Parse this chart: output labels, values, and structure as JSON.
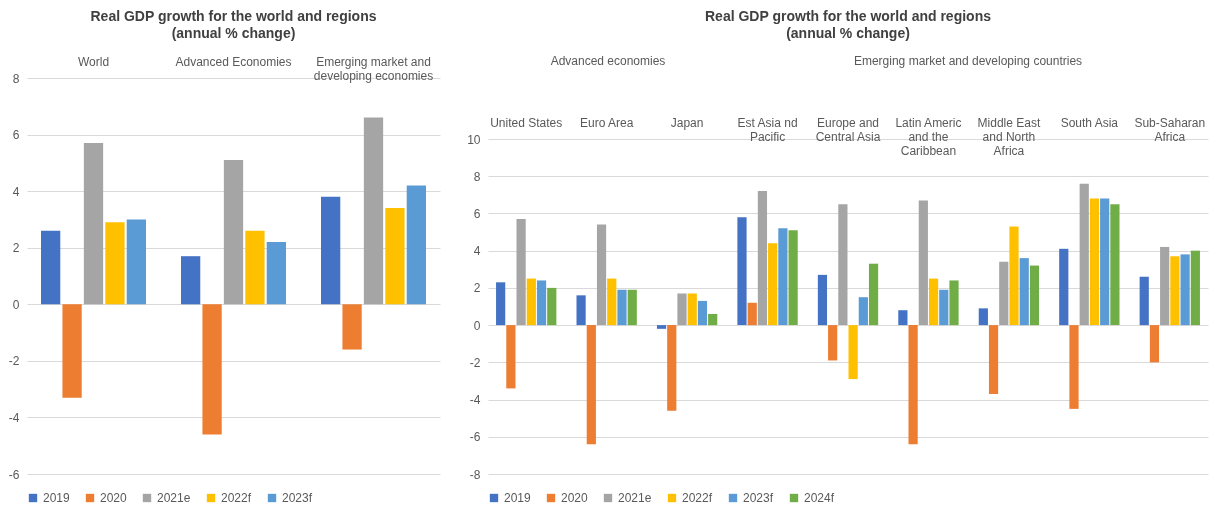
{
  "chart_data": [
    {
      "type": "bar",
      "title": "Real GDP growth for the world and regions",
      "subtitle": "(annual % change)",
      "categories": [
        "World",
        "Advanced Economies",
        "Emerging market and developing economies"
      ],
      "series": [
        {
          "name": "2019",
          "color": "#4472c4",
          "values": [
            2.6,
            1.7,
            3.8
          ]
        },
        {
          "name": "2020",
          "color": "#ed7d31",
          "values": [
            -3.3,
            -4.6,
            -1.6
          ]
        },
        {
          "name": "2021e",
          "color": "#a5a5a5",
          "values": [
            5.7,
            5.1,
            6.6
          ]
        },
        {
          "name": "2022f",
          "color": "#ffc000",
          "values": [
            2.9,
            2.6,
            3.4
          ]
        },
        {
          "name": "2023f",
          "color": "#5b9bd5",
          "values": [
            3.0,
            2.2,
            4.2
          ]
        }
      ],
      "ylim": [
        -6,
        8
      ],
      "yticks": [
        -6,
        -4,
        -2,
        0,
        2,
        4,
        6,
        8
      ],
      "grid": "y",
      "legend": "bottom"
    },
    {
      "type": "bar",
      "title": "Real GDP growth for the world and regions",
      "subtitle": "(annual % change)",
      "categories": [
        "United States",
        "Euro Area",
        "Japan",
        "Est Asia nd Pacific",
        "Europe and Central Asia",
        "Latin Americ and the Caribbean",
        "Middle East and North Africa",
        "South Asia",
        "Sub-Saharan Africa"
      ],
      "annotations": [
        "Advanced economies",
        "Emerging market and developing countries"
      ],
      "series": [
        {
          "name": "2019",
          "color": "#4472c4",
          "values": [
            2.3,
            1.6,
            -0.2,
            5.8,
            2.7,
            0.8,
            0.9,
            4.1,
            2.6
          ]
        },
        {
          "name": "2020",
          "color": "#ed7d31",
          "values": [
            -3.4,
            -6.4,
            -4.6,
            1.2,
            -1.9,
            -6.4,
            -3.7,
            -4.5,
            -2.0
          ]
        },
        {
          "name": "2021e",
          "color": "#a5a5a5",
          "values": [
            5.7,
            5.4,
            1.7,
            7.2,
            6.5,
            6.7,
            3.4,
            7.6,
            4.2
          ]
        },
        {
          "name": "2022f",
          "color": "#ffc000",
          "values": [
            2.5,
            2.5,
            1.7,
            4.4,
            -2.9,
            2.5,
            5.3,
            6.8,
            3.7
          ]
        },
        {
          "name": "2023f",
          "color": "#5b9bd5",
          "values": [
            2.4,
            1.9,
            1.3,
            5.2,
            1.5,
            1.9,
            3.6,
            6.8,
            3.8
          ]
        },
        {
          "name": "2024f",
          "color": "#70ad47",
          "values": [
            2.0,
            1.9,
            0.6,
            5.1,
            3.3,
            2.4,
            3.2,
            6.5,
            4.0
          ]
        }
      ],
      "ylim": [
        -8,
        10
      ],
      "yticks": [
        -8,
        -6,
        -4,
        -2,
        0,
        2,
        4,
        6,
        8,
        10
      ],
      "grid": "y",
      "legend": "bottom"
    }
  ]
}
